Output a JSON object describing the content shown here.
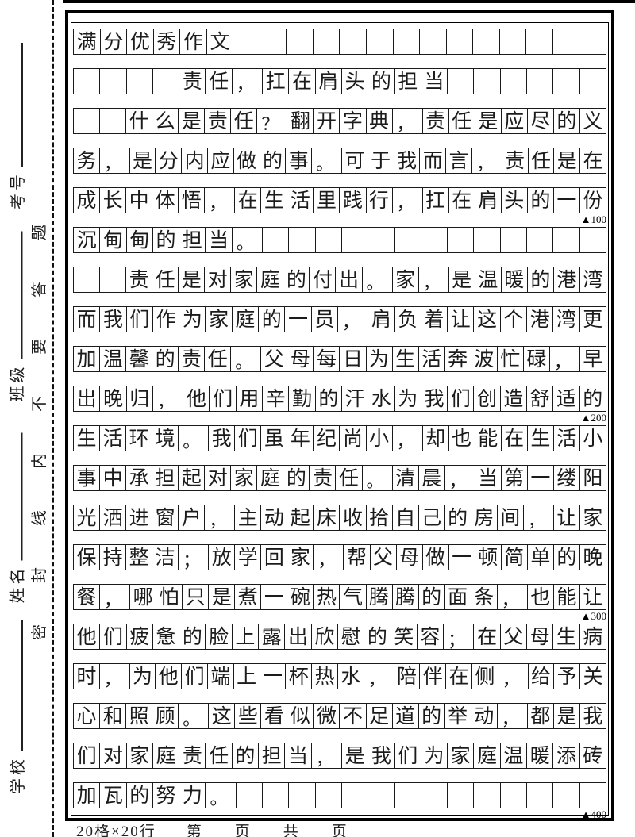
{
  "sidebar": {
    "fields": [
      {
        "label": "考号"
      },
      {
        "label": "班级"
      },
      {
        "label": "姓名"
      },
      {
        "label": "学校"
      }
    ],
    "seal_line_text": "密封线内不要答题"
  },
  "grid": {
    "columns": 20,
    "rows_count": 20,
    "rows": [
      "满分优秀作文",
      "　　　　责任，扛在肩头的担当",
      "　　什么是责任？翻开字典，责任是应尽的义",
      "务，是分内应做的事。可于我而言，责任是在",
      "成长中体悟，在生活里践行，扛在肩头的一份",
      "沉甸甸的担当。",
      "　　责任是对家庭的付出。家，是温暖的港湾",
      "而我们作为家庭的一员，肩负着让这个港湾更",
      "加温馨的责任。父母每日为生活奔波忙碌，早",
      "出晚归，他们用辛勤的汗水为我们创造舒适的",
      "生活环境。我们虽年纪尚小，却也能在生活小",
      "事中承担起对家庭的责任。清晨，当第一缕阳",
      "光洒进窗户，主动起床收拾自己的房间，让家",
      "保持整洁；放学回家，帮父母做一顿简单的晚",
      "餐，哪怕只是煮一碗热气腾腾的面条，也能让",
      "他们疲惫的脸上露出欣慰的笑容；在父母生病",
      "时，为他们端上一杯热水，陪伴在侧，给予关",
      "心和照顾。这些看似微不足道的举动，都是我",
      "们对家庭责任的担当，是我们为家庭温暖添砖",
      "加瓦的努力。"
    ],
    "markers": [
      {
        "row": 5,
        "label": "▲100"
      },
      {
        "row": 10,
        "label": "▲200"
      },
      {
        "row": 15,
        "label": "▲300"
      },
      {
        "row": 20,
        "label": "▲400"
      }
    ]
  },
  "footer": {
    "spec": "20格×20行",
    "page_prefix": "第",
    "page_unit": "页",
    "total_prefix": "共",
    "total_unit": "页"
  }
}
